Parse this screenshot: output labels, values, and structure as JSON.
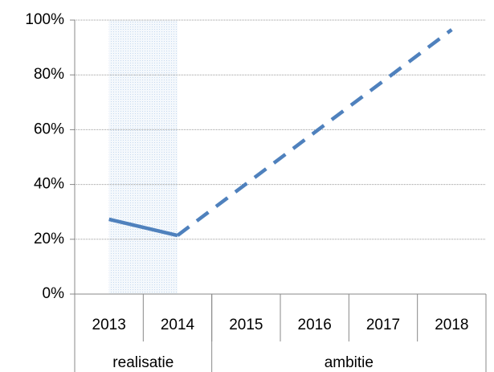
{
  "chart_data": {
    "type": "line",
    "categories": [
      "2013",
      "2014",
      "2015",
      "2016",
      "2017",
      "2018"
    ],
    "groups": [
      {
        "label": "realisatie",
        "span": 2
      },
      {
        "label": "ambitie",
        "span": 4
      }
    ],
    "series": [
      {
        "color": "#4f81bd",
        "dashed": false,
        "values": [
          27.3,
          21.4,
          null,
          null,
          null,
          null
        ]
      },
      {
        "color": "#4f81bd",
        "dashed": true,
        "values": [
          null,
          21.4,
          40.2,
          59,
          77.7,
          96.5
        ]
      }
    ],
    "ylim": [
      0,
      100
    ],
    "yticks": [
      {
        "value": 0,
        "label": "0%"
      },
      {
        "value": 20,
        "label": "20%"
      },
      {
        "value": 40,
        "label": "40%"
      },
      {
        "value": 60,
        "label": "60%"
      },
      {
        "value": 80,
        "label": "80%"
      },
      {
        "value": 100,
        "label": "100%"
      }
    ],
    "grid": true
  }
}
